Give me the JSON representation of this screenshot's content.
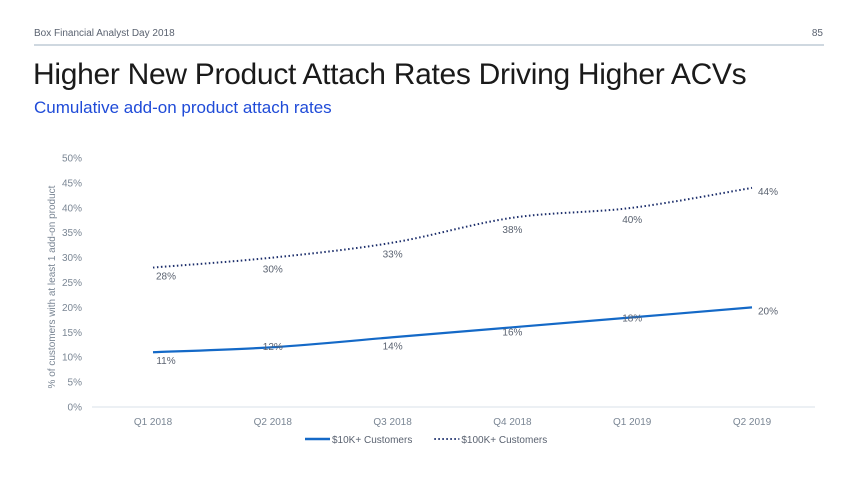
{
  "header": {
    "event": "Box Financial Analyst Day 2018",
    "page_number": "85"
  },
  "title": "Higher New Product Attach Rates Driving Higher ACVs",
  "subtitle": "Cumulative add-on product attach rates",
  "chart_data": {
    "type": "line",
    "title": "Cumulative add-on product attach rates",
    "xlabel": "",
    "ylabel": "% of customers with at least 1 add-on product",
    "categories": [
      "Q1 2018",
      "Q2 2018",
      "Q3 2018",
      "Q4 2018",
      "Q1 2019",
      "Q2 2019"
    ],
    "ylim": [
      0,
      50
    ],
    "yticks": [
      0,
      5,
      10,
      15,
      20,
      25,
      30,
      35,
      40,
      45,
      50
    ],
    "ytick_labels": [
      "0%",
      "5%",
      "10%",
      "15%",
      "20%",
      "25%",
      "30%",
      "35%",
      "40%",
      "45%",
      "50%"
    ],
    "grid": false,
    "legend_position": "bottom",
    "series": [
      {
        "name": "$10K+ Customers",
        "style": "solid",
        "color": "#1469c7",
        "values": [
          11,
          12,
          14,
          16,
          18,
          20
        ],
        "labels": [
          "11%",
          "12%",
          "14%",
          "16%",
          "18%",
          "20%"
        ]
      },
      {
        "name": "$100K+ Customers",
        "style": "dotted",
        "color": "#1c2e6b",
        "values": [
          28,
          30,
          33,
          38,
          40,
          44
        ],
        "labels": [
          "28%",
          "30%",
          "33%",
          "38%",
          "40%",
          "44%"
        ]
      }
    ]
  }
}
